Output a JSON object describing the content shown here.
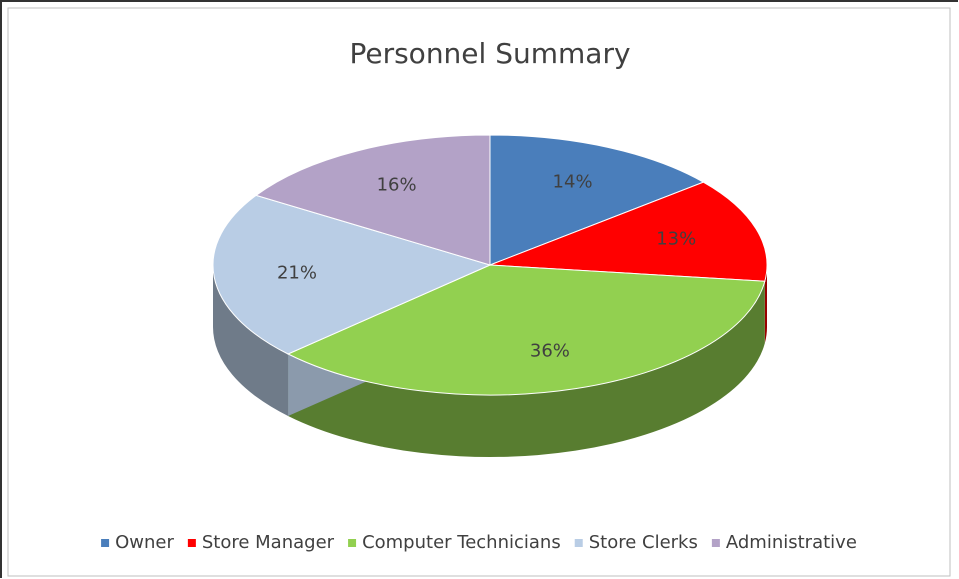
{
  "chart_data": {
    "type": "pie",
    "title": "Personnel Summary",
    "categories": [
      "Owner",
      "Store Manager",
      "Computer Technicians",
      "Store Clerks",
      "Administrative"
    ],
    "values": [
      14,
      13,
      36,
      21,
      16
    ],
    "value_labels": [
      "14%",
      "13%",
      "36%",
      "21%",
      "16%"
    ],
    "colors": [
      "#4a7ebb",
      "#ff0000",
      "#92d050",
      "#b9cde5",
      "#b3a2c7"
    ],
    "legend": "bottom"
  }
}
